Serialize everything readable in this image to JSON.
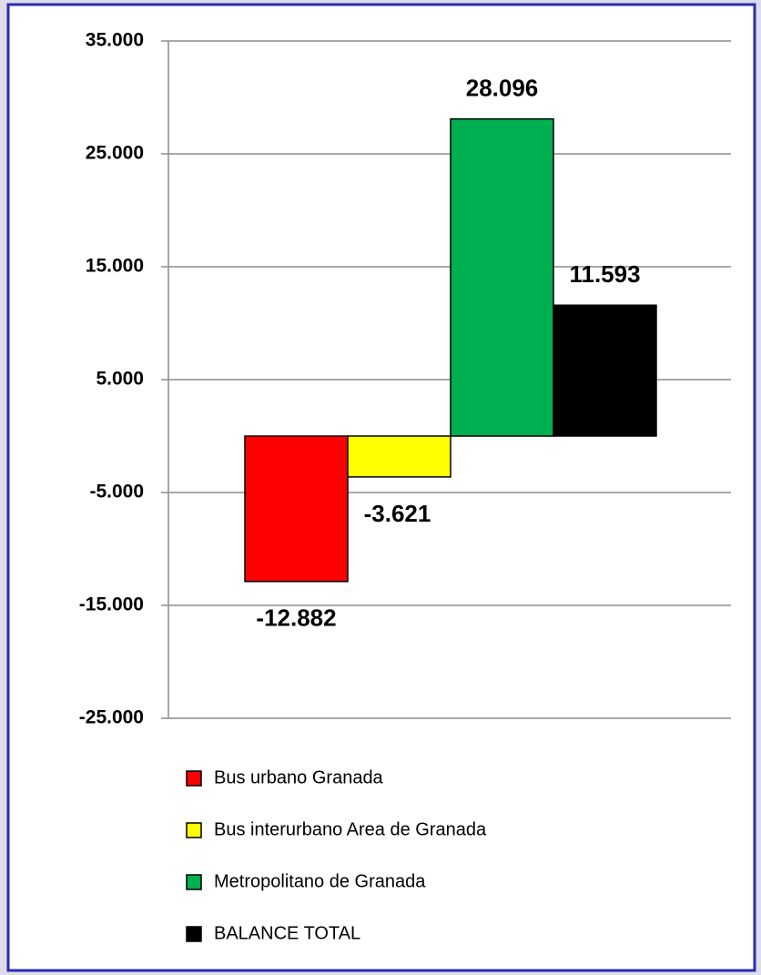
{
  "chart_data": {
    "type": "bar",
    "categories": [
      null
    ],
    "series": [
      {
        "name": "Bus urbano Granada",
        "color": "#ff0000",
        "values": [
          -12882
        ],
        "value_labels": [
          "-12.882"
        ]
      },
      {
        "name": "Bus interurbano Area de Granada",
        "color": "#ffff00",
        "values": [
          -3621
        ],
        "value_labels": [
          "-3.621"
        ]
      },
      {
        "name": "Metropolitano de Granada",
        "color": "#00b050",
        "values": [
          28096
        ],
        "value_labels": [
          "28.096"
        ]
      },
      {
        "name": "BALANCE TOTAL",
        "color": "#000000",
        "values": [
          11593
        ],
        "value_labels": [
          "11.593"
        ]
      }
    ],
    "ylim": [
      -25000,
      35000
    ],
    "yticks": [
      {
        "value": -25000,
        "label": "-25.000"
      },
      {
        "value": -15000,
        "label": "-15.000"
      },
      {
        "value": -5000,
        "label": "-5.000"
      },
      {
        "value": 5000,
        "label": "5.000"
      },
      {
        "value": 15000,
        "label": "15.000"
      },
      {
        "value": 25000,
        "label": "25.000"
      },
      {
        "value": 35000,
        "label": "35.000"
      }
    ],
    "grid": true
  }
}
